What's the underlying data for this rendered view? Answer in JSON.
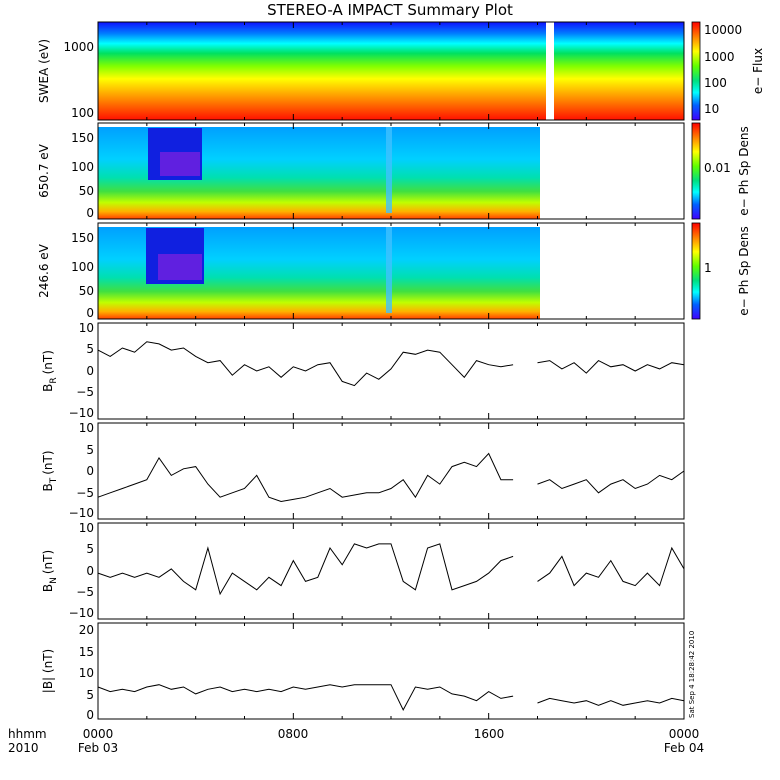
{
  "figure": {
    "title": "STEREO-A IMPACT Summary Plot",
    "stamp": "Sat Sep 4 18:28:42 2010",
    "time_label_left": "hhmm",
    "year_label": "2010"
  },
  "chart_data": [
    {
      "id": "swea",
      "type": "heatmap",
      "ylabel": "SWEA (eV)",
      "yscale": "log",
      "ylim": [
        100,
        2000
      ],
      "yticks": [
        "1000",
        "100"
      ],
      "colorbar": {
        "label": "e− Flux",
        "scale": "log",
        "ticks": [
          "10000",
          "1000",
          "100",
          "10"
        ]
      },
      "data_gap": [
        "17:20",
        "17:40"
      ],
      "palette": [
        "#ff0000",
        "#ff8000",
        "#ffff00",
        "#80ff00",
        "#00e060",
        "#00ffff",
        "#0080ff",
        "#0000ff"
      ]
    },
    {
      "id": "pad_650",
      "type": "heatmap",
      "ylabel": "650.7 eV",
      "ylim": [
        0,
        180
      ],
      "yticks": [
        "150",
        "100",
        "50",
        "0"
      ],
      "colorbar": {
        "label": "e− Ph Sp Dens",
        "scale": "log",
        "ticks": [
          "0.01"
        ]
      },
      "data_end": "17:00"
    },
    {
      "id": "pad_246",
      "type": "heatmap",
      "ylabel": "246.6 eV",
      "ylim": [
        0,
        180
      ],
      "yticks": [
        "150",
        "100",
        "50",
        "0"
      ],
      "colorbar": {
        "label": "e− Ph Sp Dens",
        "scale": "log",
        "ticks": [
          "1"
        ]
      },
      "data_end": "17:00"
    },
    {
      "id": "br",
      "type": "line",
      "ylabel": "B_R (nT)",
      "ylabel_main": "B",
      "ylabel_sub": "R",
      "ylabel_unit": "(nT)",
      "ylim": [
        -12,
        11
      ],
      "yticks": [
        "10",
        "5",
        "0",
        "−5",
        "−10"
      ],
      "x_hours": [
        0,
        0.5,
        1,
        1.5,
        2,
        2.5,
        3,
        3.5,
        4,
        4.5,
        5,
        5.5,
        6,
        6.5,
        7,
        7.5,
        8,
        8.5,
        9,
        9.5,
        10,
        10.5,
        11,
        11.5,
        12,
        12.5,
        13,
        13.5,
        14,
        14.5,
        15,
        15.5,
        16,
        16.5,
        17,
        18,
        18.5,
        19,
        19.5,
        20,
        20.5,
        21,
        21.5,
        22,
        22.5,
        23,
        23.5,
        24
      ],
      "values": [
        4.5,
        3,
        5,
        4,
        6.5,
        6,
        4.5,
        5,
        3,
        1.5,
        2,
        -1.5,
        1,
        -0.5,
        0.5,
        -2,
        0.5,
        -0.5,
        1,
        1.5,
        -3,
        -4,
        -1,
        -2.5,
        0,
        4,
        3.5,
        4.5,
        4,
        1,
        -2,
        2,
        1,
        0.5,
        1,
        1.5,
        2,
        0,
        1.5,
        -1,
        2,
        0.5,
        1,
        -0.5,
        1,
        0,
        1.5,
        1
      ],
      "gap": [
        "17:00",
        "18:00"
      ]
    },
    {
      "id": "bt",
      "type": "line",
      "ylabel": "B_T (nT)",
      "ylabel_main": "B",
      "ylabel_sub": "T",
      "ylabel_unit": "(nT)",
      "ylim": [
        -11,
        11
      ],
      "yticks": [
        "10",
        "5",
        "0",
        "−5",
        "−10"
      ],
      "x_hours": [
        0,
        0.5,
        1,
        1.5,
        2,
        2.5,
        3,
        3.5,
        4,
        4.5,
        5,
        5.5,
        6,
        6.5,
        7,
        7.5,
        8,
        8.5,
        9,
        9.5,
        10,
        10.5,
        11,
        11.5,
        12,
        12.5,
        13,
        13.5,
        14,
        14.5,
        15,
        15.5,
        16,
        16.5,
        17,
        18,
        18.5,
        19,
        19.5,
        20,
        20.5,
        21,
        21.5,
        22,
        22.5,
        23,
        23.5,
        24
      ],
      "values": [
        -6,
        -5,
        -4,
        -3,
        -2,
        3,
        -1,
        0.5,
        1,
        -3,
        -6,
        -5,
        -4,
        -1,
        -6,
        -7,
        -6.5,
        -6,
        -5,
        -4,
        -6,
        -5.5,
        -5,
        -5,
        -4,
        -2,
        -6,
        -1,
        -3,
        1,
        2,
        1,
        4,
        -2,
        -2,
        -3,
        -2,
        -4,
        -3,
        -2,
        -5,
        -3,
        -2,
        -4,
        -3,
        -1,
        -2,
        0
      ],
      "gap": [
        "17:00",
        "18:00"
      ]
    },
    {
      "id": "bn",
      "type": "line",
      "ylabel": "B_N (nT)",
      "ylabel_main": "B",
      "ylabel_sub": "N",
      "ylabel_unit": "(nT)",
      "ylim": [
        -12,
        11
      ],
      "yticks": [
        "10",
        "5",
        "0",
        "−5",
        "−10"
      ],
      "x_hours": [
        0,
        0.5,
        1,
        1.5,
        2,
        2.5,
        3,
        3.5,
        4,
        4.5,
        5,
        5.5,
        6,
        6.5,
        7,
        7.5,
        8,
        8.5,
        9,
        9.5,
        10,
        10.5,
        11,
        11.5,
        12,
        12.5,
        13,
        13.5,
        14,
        14.5,
        15,
        15.5,
        16,
        16.5,
        17,
        18,
        18.5,
        19,
        19.5,
        20,
        20.5,
        21,
        21.5,
        22,
        22.5,
        23,
        23.5,
        24
      ],
      "values": [
        -1,
        -2,
        -1,
        -2,
        -1,
        -2,
        0,
        -3,
        -5,
        5,
        -6,
        -1,
        -3,
        -5,
        -2,
        -4,
        2,
        -3,
        -2,
        5,
        1,
        6,
        5,
        6,
        6,
        -3,
        -5,
        5,
        6,
        -5,
        -4,
        -3,
        -1,
        2,
        3,
        -3,
        -1,
        3,
        -4,
        -1,
        -2,
        2,
        -3,
        -4,
        -1,
        -4,
        5,
        0
      ],
      "gap": [
        "17:00",
        "18:00"
      ]
    },
    {
      "id": "bmag",
      "type": "line",
      "ylabel": "|B| (nT)",
      "ylim": [
        -0.5,
        20.5
      ],
      "yticks": [
        "20",
        "15",
        "10",
        "5",
        "0"
      ],
      "x_hours": [
        0,
        0.5,
        1,
        1.5,
        2,
        2.5,
        3,
        3.5,
        4,
        4.5,
        5,
        5.5,
        6,
        6.5,
        7,
        7.5,
        8,
        8.5,
        9,
        9.5,
        10,
        10.5,
        11,
        11.5,
        12,
        12.5,
        13,
        13.5,
        14,
        14.5,
        15,
        15.5,
        16,
        16.5,
        17,
        18,
        18.5,
        19,
        19.5,
        20,
        20.5,
        21,
        21.5,
        22,
        22.5,
        23,
        23.5,
        24
      ],
      "values": [
        6.5,
        5.5,
        6,
        5.5,
        6.5,
        7,
        6,
        6.5,
        5,
        6,
        6.5,
        5.5,
        6,
        5.5,
        6,
        5.5,
        6.5,
        6,
        6.5,
        7,
        6.5,
        7,
        7,
        7,
        7,
        1.5,
        6.5,
        6,
        6.5,
        5,
        4.5,
        3.5,
        5.5,
        4,
        4.5,
        3,
        4,
        3.5,
        3,
        3.5,
        2.5,
        3.5,
        2.5,
        3,
        3.5,
        3,
        4,
        3.5
      ],
      "gap": [
        "17:00",
        "18:00"
      ]
    }
  ],
  "x_axis": {
    "range_hours": [
      0,
      24
    ],
    "ticks": [
      {
        "hour": 0,
        "line1": "0000",
        "line2": "Feb 03"
      },
      {
        "hour": 8,
        "line1": "0800",
        "line2": ""
      },
      {
        "hour": 16,
        "line1": "1600",
        "line2": ""
      },
      {
        "hour": 24,
        "line1": "0000",
        "line2": "Feb 04"
      }
    ]
  }
}
